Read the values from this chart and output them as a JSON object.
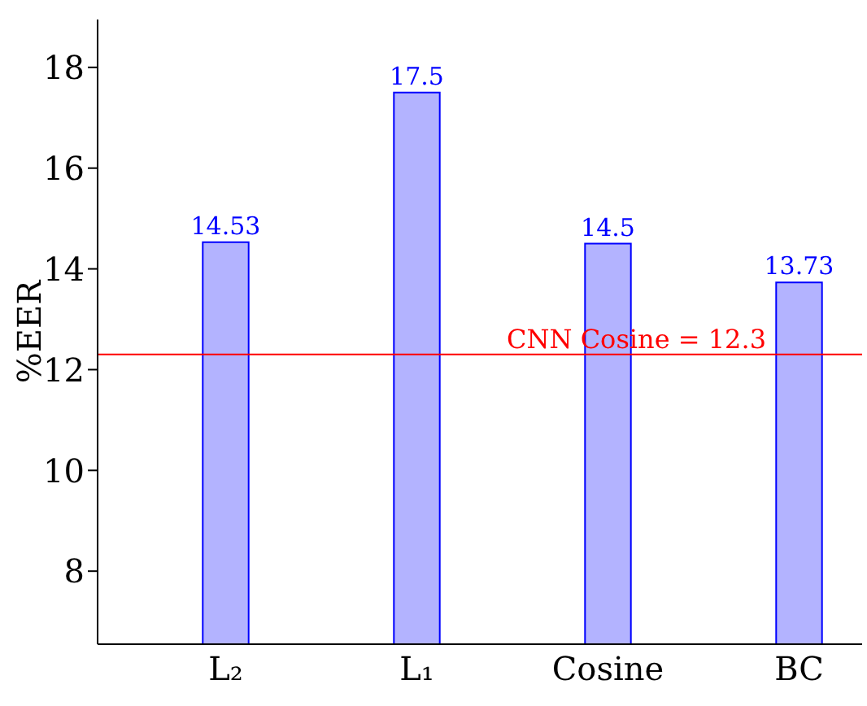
{
  "chart_data": {
    "type": "bar",
    "ylabel": "%EER",
    "categories": [
      "L₂",
      "L₁",
      "Cosine",
      "BC"
    ],
    "values": [
      14.53,
      17.5,
      14.5,
      13.73
    ],
    "color": "#b3b3ff",
    "data_labels": true,
    "ylim": [
      6.55,
      18.95
    ],
    "yticks": [
      8,
      10,
      12,
      14,
      16,
      18
    ],
    "grid": false,
    "legend": false,
    "ref_lines": [
      {
        "axis": "y",
        "value": 12.3,
        "label": "CNN Cosine = 12.3",
        "color": "#ff0000"
      }
    ]
  }
}
